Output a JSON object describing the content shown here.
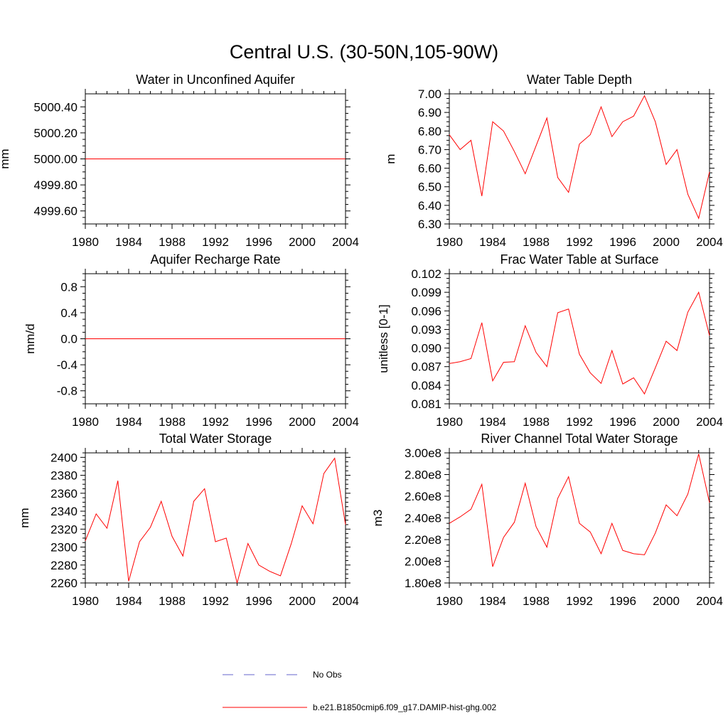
{
  "figure_title": "Central U.S. (30-50N,105-90W)",
  "legend": [
    {
      "label": "No Obs",
      "color": "#6666cc",
      "style": "dashed"
    },
    {
      "label": "b.e21.B1850cmip6.f09_g17.DAMIP-hist-ghg.002",
      "color": "#ff0000",
      "style": "solid"
    }
  ],
  "chart_data": [
    {
      "type": "line",
      "title": "Water in Unconfined Aquifer",
      "ylabel": "mm",
      "xlim": [
        1980,
        2004
      ],
      "ylim": [
        4999.5,
        5000.5
      ],
      "xticks": [
        1980,
        1984,
        1988,
        1992,
        1996,
        2000,
        2004
      ],
      "yticks": [
        4999.6,
        4999.8,
        5000.0,
        5000.2,
        5000.4
      ],
      "ytick_labels": [
        "4999.60",
        "4999.80",
        "5000.00",
        "5000.20",
        "5000.40"
      ],
      "series": [
        {
          "color": "#ff0000",
          "x": [
            1980,
            1981,
            1982,
            1983,
            1984,
            1985,
            1986,
            1987,
            1988,
            1989,
            1990,
            1991,
            1992,
            1993,
            1994,
            1995,
            1996,
            1997,
            1998,
            1999,
            2000,
            2001,
            2002,
            2003,
            2004
          ],
          "y": [
            5000,
            5000,
            5000,
            5000,
            5000,
            5000,
            5000,
            5000,
            5000,
            5000,
            5000,
            5000,
            5000,
            5000,
            5000,
            5000,
            5000,
            5000,
            5000,
            5000,
            5000,
            5000,
            5000,
            5000,
            5000
          ]
        }
      ]
    },
    {
      "type": "line",
      "title": "Water Table Depth",
      "ylabel": "m",
      "xlim": [
        1980,
        2004
      ],
      "ylim": [
        6.3,
        7.0
      ],
      "xticks": [
        1980,
        1984,
        1988,
        1992,
        1996,
        2000,
        2004
      ],
      "yticks": [
        6.3,
        6.4,
        6.5,
        6.6,
        6.7,
        6.8,
        6.9,
        7.0
      ],
      "ytick_labels": [
        "6.30",
        "6.40",
        "6.50",
        "6.60",
        "6.70",
        "6.80",
        "6.90",
        "7.00"
      ],
      "series": [
        {
          "color": "#ff0000",
          "x": [
            1980,
            1981,
            1982,
            1983,
            1984,
            1985,
            1986,
            1987,
            1988,
            1989,
            1990,
            1991,
            1992,
            1993,
            1994,
            1995,
            1996,
            1997,
            1998,
            1999,
            2000,
            2001,
            2002,
            2003,
            2004
          ],
          "y": [
            6.78,
            6.7,
            6.75,
            6.45,
            6.85,
            6.8,
            6.69,
            6.57,
            6.72,
            6.87,
            6.55,
            6.47,
            6.73,
            6.78,
            6.93,
            6.77,
            6.85,
            6.88,
            6.99,
            6.85,
            6.62,
            6.7,
            6.46,
            6.33,
            6.58
          ]
        }
      ]
    },
    {
      "type": "line",
      "title": "Aquifer Recharge Rate",
      "ylabel": "mm/d",
      "xlim": [
        1980,
        2004
      ],
      "ylim": [
        -1.0,
        1.0
      ],
      "xticks": [
        1980,
        1984,
        1988,
        1992,
        1996,
        2000,
        2004
      ],
      "yticks": [
        -0.8,
        -0.4,
        0.0,
        0.4,
        0.8
      ],
      "ytick_labels": [
        "-0.8",
        "-0.4",
        "0.0",
        "0.4",
        "0.8"
      ],
      "series": [
        {
          "color": "#ff0000",
          "x": [
            1980,
            1981,
            1982,
            1983,
            1984,
            1985,
            1986,
            1987,
            1988,
            1989,
            1990,
            1991,
            1992,
            1993,
            1994,
            1995,
            1996,
            1997,
            1998,
            1999,
            2000,
            2001,
            2002,
            2003,
            2004
          ],
          "y": [
            0,
            0,
            0,
            0,
            0,
            0,
            0,
            0,
            0,
            0,
            0,
            0,
            0,
            0,
            0,
            0,
            0,
            0,
            0,
            0,
            0,
            0,
            0,
            0,
            0
          ]
        }
      ]
    },
    {
      "type": "line",
      "title": "Frac Water Table at Surface",
      "ylabel": "unitless [0-1]",
      "xlim": [
        1980,
        2004
      ],
      "ylim": [
        0.081,
        0.102
      ],
      "xticks": [
        1980,
        1984,
        1988,
        1992,
        1996,
        2000,
        2004
      ],
      "yticks": [
        0.081,
        0.084,
        0.087,
        0.09,
        0.093,
        0.096,
        0.099,
        0.102
      ],
      "ytick_labels": [
        "0.081",
        "0.084",
        "0.087",
        "0.090",
        "0.093",
        "0.096",
        "0.099",
        "0.102"
      ],
      "series": [
        {
          "color": "#ff0000",
          "x": [
            1980,
            1981,
            1982,
            1983,
            1984,
            1985,
            1986,
            1987,
            1988,
            1989,
            1990,
            1991,
            1992,
            1993,
            1994,
            1995,
            1996,
            1997,
            1998,
            1999,
            2000,
            2001,
            2002,
            2003,
            2004
          ],
          "y": [
            0.0875,
            0.0878,
            0.0883,
            0.0941,
            0.0847,
            0.0877,
            0.0878,
            0.0936,
            0.0893,
            0.087,
            0.0957,
            0.0963,
            0.089,
            0.086,
            0.0843,
            0.0896,
            0.0842,
            0.0852,
            0.0826,
            0.0868,
            0.0911,
            0.0896,
            0.0958,
            0.099,
            0.092
          ]
        }
      ]
    },
    {
      "type": "line",
      "title": "Total Water Storage",
      "ylabel": "mm",
      "xlim": [
        1980,
        2004
      ],
      "ylim": [
        2260,
        2405
      ],
      "xticks": [
        1980,
        1984,
        1988,
        1992,
        1996,
        2000,
        2004
      ],
      "yticks": [
        2260,
        2280,
        2300,
        2320,
        2340,
        2360,
        2380,
        2400
      ],
      "ytick_labels": [
        "2260",
        "2280",
        "2300",
        "2320",
        "2340",
        "2360",
        "2380",
        "2400"
      ],
      "series": [
        {
          "color": "#ff0000",
          "x": [
            1980,
            1981,
            1982,
            1983,
            1984,
            1985,
            1986,
            1987,
            1988,
            1989,
            1990,
            1991,
            1992,
            1993,
            1994,
            1995,
            1996,
            1997,
            1998,
            1999,
            2000,
            2001,
            2002,
            2003,
            2004
          ],
          "y": [
            2307,
            2337,
            2321,
            2374,
            2262,
            2306,
            2322,
            2351,
            2312,
            2290,
            2351,
            2365,
            2306,
            2310,
            2260,
            2304,
            2280,
            2273,
            2268,
            2304,
            2346,
            2326,
            2382,
            2399,
            2325
          ]
        }
      ]
    },
    {
      "type": "line",
      "title": "River Channel Total Water Storage",
      "ylabel": "m3",
      "xlim": [
        1980,
        2004
      ],
      "ylim": [
        180000000.0,
        300000000.0
      ],
      "xticks": [
        1980,
        1984,
        1988,
        1992,
        1996,
        2000,
        2004
      ],
      "yticks": [
        180000000.0,
        200000000.0,
        220000000.0,
        240000000.0,
        260000000.0,
        280000000.0,
        300000000.0
      ],
      "ytick_labels": [
        "1.80e8",
        "2.00e8",
        "2.20e8",
        "2.40e8",
        "2.60e8",
        "2.80e8",
        "3.00e8"
      ],
      "series": [
        {
          "color": "#ff0000",
          "x": [
            1980,
            1981,
            1982,
            1983,
            1984,
            1985,
            1986,
            1987,
            1988,
            1989,
            1990,
            1991,
            1992,
            1993,
            1994,
            1995,
            1996,
            1997,
            1998,
            1999,
            2000,
            2001,
            2002,
            2003,
            2004
          ],
          "y": [
            235000000.0,
            241000000.0,
            248000000.0,
            271000000.0,
            195000000.0,
            222000000.0,
            236000000.0,
            272000000.0,
            232000000.0,
            213000000.0,
            258000000.0,
            278000000.0,
            235000000.0,
            227000000.0,
            207000000.0,
            235000000.0,
            210000000.0,
            207000000.0,
            206000000.0,
            226000000.0,
            252000000.0,
            242000000.0,
            262000000.0,
            299000000.0,
            254000000.0
          ]
        }
      ]
    }
  ]
}
